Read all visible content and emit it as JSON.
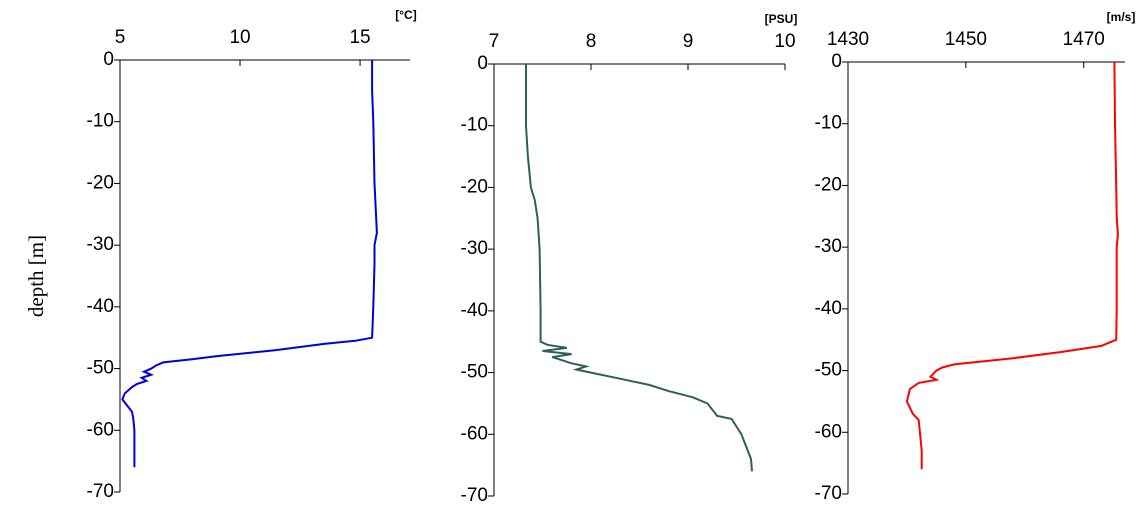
{
  "chart_data": [
    {
      "type": "line",
      "ylabel": "depth [m]",
      "unit": "[°C]",
      "color": "#0000dd",
      "x": [
        15.5,
        15.5,
        15.55,
        15.6,
        15.7,
        15.6,
        15.6,
        15.55,
        15.5,
        14.8,
        13.5,
        11.5,
        9,
        8,
        6.8,
        6.5,
        6.3,
        6.0,
        6.3,
        5.9,
        6.1,
        5.7,
        5.5,
        5.2,
        5.1,
        5.3,
        5.5,
        5.55,
        5.6,
        5.6,
        5.6,
        5.6
      ],
      "y": [
        0,
        -5,
        -10,
        -20,
        -28,
        -30,
        -33,
        -40,
        -45,
        -45.5,
        -46,
        -47,
        -48,
        -48.5,
        -49,
        -49.5,
        -50,
        -50.5,
        -51,
        -51.5,
        -52,
        -52.5,
        -53,
        -54,
        -55,
        -56,
        -57,
        -58,
        -60,
        -62,
        -64,
        -66
      ],
      "xlim": [
        5,
        17.08
      ],
      "xticks": [
        5,
        10,
        15
      ],
      "ylim": [
        -70,
        0
      ],
      "yticks": [
        0,
        -10,
        -20,
        -30,
        -40,
        -50,
        -60,
        -70
      ]
    },
    {
      "type": "line",
      "unit": "[PSU]",
      "color": "#2f5f5a",
      "x": [
        7.33,
        7.33,
        7.35,
        7.38,
        7.42,
        7.45,
        7.47,
        7.48,
        7.48,
        7.55,
        7.75,
        7.5,
        7.8,
        7.6,
        7.7,
        7.8,
        7.95,
        7.85,
        8.0,
        8.15,
        8.3,
        8.45,
        8.6,
        8.8,
        9.05,
        9.2,
        9.25,
        9.3,
        9.45,
        9.55,
        9.6,
        9.65,
        9.66
      ],
      "y": [
        0,
        -10,
        -15,
        -20,
        -22,
        -25,
        -30,
        -40,
        -45,
        -45.5,
        -46,
        -46.5,
        -47,
        -47.5,
        -48,
        -48.5,
        -49,
        -49.5,
        -50,
        -50.5,
        -51,
        -51.5,
        -52,
        -53,
        -54,
        -55,
        -56,
        -57,
        -57.5,
        -60,
        -62,
        -64,
        -66
      ],
      "xlim": [
        7,
        10
      ],
      "xticks": [
        7,
        8,
        9,
        10
      ],
      "ylim": [
        -70,
        0
      ],
      "yticks": [
        0,
        -10,
        -20,
        -30,
        -40,
        -50,
        -60,
        -70
      ]
    },
    {
      "type": "line",
      "unit": "[m/s]",
      "color": "#ff0000",
      "x": [
        1475.2,
        1475.3,
        1475.5,
        1475.6,
        1475.8,
        1475.6,
        1475.6,
        1475.6,
        1475.5,
        1473,
        1466,
        1458,
        1448,
        1446,
        1445,
        1444,
        1445,
        1442,
        1440.5,
        1440,
        1441,
        1442,
        1442.2,
        1442.5,
        1442.5
      ],
      "y": [
        0,
        -10,
        -20,
        -25,
        -28,
        -30,
        -35,
        -40,
        -45,
        -46,
        -47,
        -48,
        -49,
        -49.5,
        -50,
        -51,
        -51.5,
        -52,
        -53,
        -55,
        -57,
        -58,
        -60,
        -63,
        -66
      ],
      "xlim": [
        1430,
        1477
      ],
      "xticks": [
        1430,
        1450,
        1470
      ],
      "ylim": [
        -70,
        0
      ],
      "yticks": [
        0,
        -10,
        -20,
        -30,
        -40,
        -50,
        -60,
        -70
      ]
    }
  ]
}
